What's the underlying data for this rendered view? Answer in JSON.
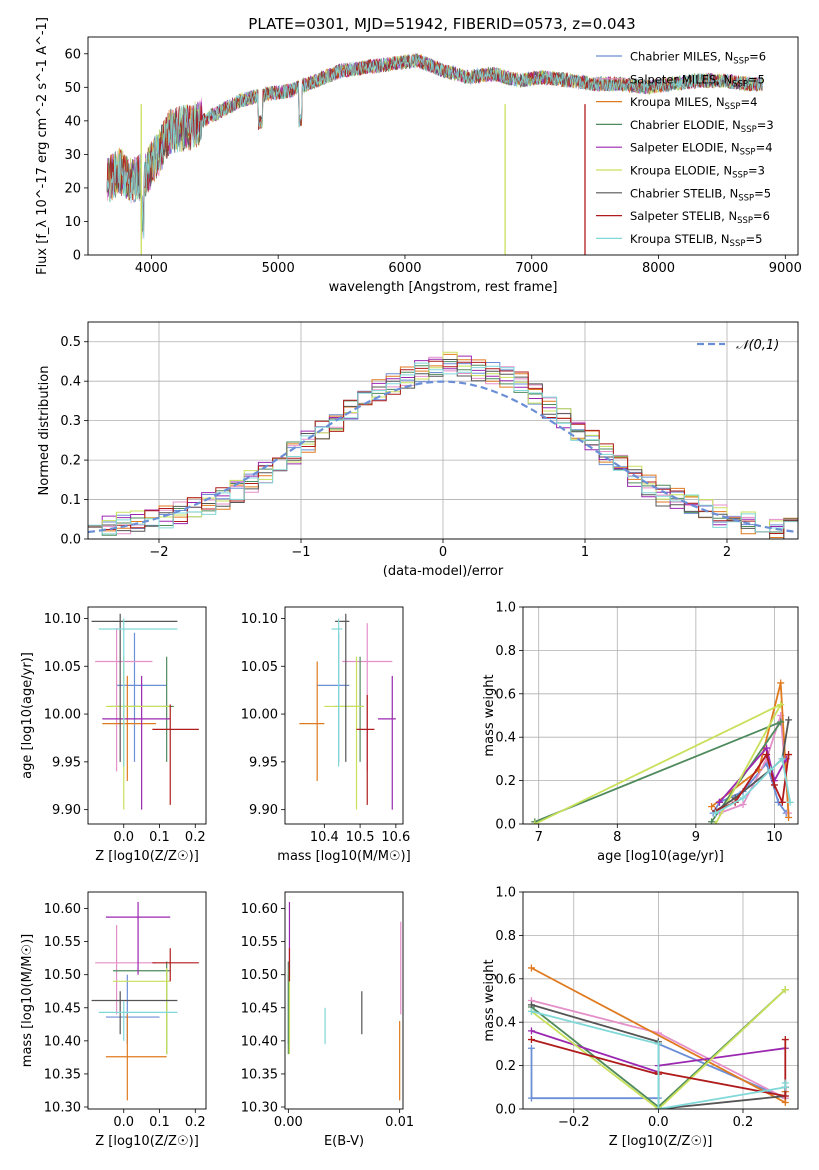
{
  "title": "PLATE=0301, MJD=51942, FIBERID=0573, z=0.043",
  "series_colors": [
    "#6b8fd6",
    "#e58fc9",
    "#e07a1f",
    "#4f8a5c",
    "#9b27b0",
    "#c8e05a",
    "#555555",
    "#b01c1c",
    "#80d8d8"
  ],
  "legend_labels": [
    "Chabrier MILES, N_SSP=6",
    "Salpeter MILES, N_SSP=5",
    "Kroupa MILES, N_SSP=4",
    "Chabrier ELODIE, N_SSP=3",
    "Salpeter ELODIE, N_SSP=4",
    "Kroupa ELODIE, N_SSP=3",
    "Chabrier STELIB, N_SSP=5",
    "Salpeter STELIB, N_SSP=6",
    "Kroupa STELIB, N_SSP=5"
  ],
  "chart_data": [
    {
      "id": "spectrum",
      "type": "line",
      "xlabel": "wavelength [Angstrom, rest frame]",
      "ylabel": "Flux [f_λ 10^-17 erg cm^-2 s^-1 A^-1]",
      "xlim": [
        3500,
        9100
      ],
      "ylim": [
        0,
        65
      ],
      "xticks": [
        4000,
        5000,
        6000,
        7000,
        8000,
        9000
      ],
      "yticks": [
        0,
        10,
        20,
        30,
        40,
        50,
        60
      ],
      "legend_position": "upper right",
      "continuum": {
        "x": [
          3650,
          3750,
          3850,
          3950,
          4050,
          4150,
          4300,
          4500,
          4700,
          4900,
          5100,
          5300,
          5500,
          5700,
          5900,
          6100,
          6300,
          6500,
          6700,
          6900,
          7100,
          7300,
          7500,
          7700,
          7900,
          8100,
          8300,
          8500,
          8700,
          8820
        ],
        "y": [
          22,
          25,
          22,
          24,
          30,
          37,
          38,
          42,
          46,
          48,
          49,
          52,
          55,
          56,
          57,
          58,
          55,
          53,
          54,
          52,
          53,
          52,
          51,
          51,
          50,
          51,
          52,
          52,
          51,
          51
        ]
      },
      "dropouts": [
        {
          "x": 3920,
          "series": "Kroupa ELODIE, N_SSP=3"
        },
        {
          "x": 6790,
          "series": "Kroupa ELODIE, N_SSP=3"
        },
        {
          "x": 7420,
          "series": "Salpeter STELIB, N_SSP=6"
        }
      ]
    },
    {
      "id": "residual_hist",
      "type": "bar",
      "xlabel": "(data-model)/error",
      "ylabel": "Normed distribution",
      "xlim": [
        -2.5,
        2.5
      ],
      "ylim": [
        0,
        0.55
      ],
      "xticks": [
        -2,
        -1,
        0,
        1,
        2
      ],
      "yticks": [
        0.0,
        0.1,
        0.2,
        0.3,
        0.4,
        0.5
      ],
      "bin_width": 0.1,
      "gaussian_label": "𝒩(0,1)",
      "gaussian_color": "#6b8fd6",
      "envelope": {
        "x": [
          -2.5,
          -2.0,
          -1.5,
          -1.0,
          -0.5,
          0.0,
          0.5,
          1.0,
          1.5,
          2.0,
          2.5
        ],
        "y": [
          0.03,
          0.05,
          0.11,
          0.23,
          0.37,
          0.45,
          0.41,
          0.26,
          0.12,
          0.05,
          0.02
        ]
      }
    },
    {
      "id": "age_vs_Z",
      "type": "scatter",
      "xlabel": "Z [log10(Z/Z☉)]",
      "ylabel": "age [log10(age/yr)]",
      "xlim": [
        -0.1,
        0.23
      ],
      "ylim": [
        9.885,
        10.112
      ],
      "xticks": [
        0.0,
        0.1,
        0.2
      ],
      "yticks": [
        9.9,
        9.95,
        10.0,
        10.05,
        10.1
      ],
      "points": [
        {
          "series": "Chabrier MILES, N_SSP=6",
          "x": 0.03,
          "xlo": -0.02,
          "xhi": 0.12,
          "y": 10.03,
          "ylo": 9.95,
          "yhi": 10.085
        },
        {
          "series": "Salpeter MILES, N_SSP=5",
          "x": -0.02,
          "xlo": -0.08,
          "xhi": 0.08,
          "y": 10.055,
          "ylo": 9.94,
          "yhi": 10.09
        },
        {
          "series": "Kroupa MILES, N_SSP=4",
          "x": 0.01,
          "xlo": -0.06,
          "xhi": 0.09,
          "y": 9.99,
          "ylo": 9.93,
          "yhi": 10.04
        },
        {
          "series": "Chabrier ELODIE, N_SSP=3",
          "x": 0.12,
          "xlo": -0.04,
          "xhi": 0.14,
          "y": 10.008,
          "ylo": 9.95,
          "yhi": 10.06
        },
        {
          "series": "Salpeter ELODIE, N_SSP=4",
          "x": 0.05,
          "xlo": -0.06,
          "xhi": 0.13,
          "y": 9.995,
          "ylo": 9.9,
          "yhi": 10.04
        },
        {
          "series": "Kroupa ELODIE, N_SSP=3",
          "x": 0.0,
          "xlo": -0.05,
          "xhi": 0.13,
          "y": 10.008,
          "ylo": 9.9,
          "yhi": 10.06
        },
        {
          "series": "Chabrier STELIB, N_SSP=5",
          "x": -0.01,
          "xlo": -0.09,
          "xhi": 0.15,
          "y": 10.097,
          "ylo": 9.95,
          "yhi": 10.105
        },
        {
          "series": "Salpeter STELIB, N_SSP=6",
          "x": 0.13,
          "xlo": 0.08,
          "xhi": 0.21,
          "y": 9.984,
          "ylo": 9.905,
          "yhi": 10.01
        },
        {
          "series": "Kroupa STELIB, N_SSP=5",
          "x": 0.0,
          "xlo": -0.07,
          "xhi": 0.15,
          "y": 10.089,
          "ylo": 9.945,
          "yhi": 10.1
        }
      ]
    },
    {
      "id": "age_vs_mass",
      "type": "scatter",
      "xlabel": "mass [log10(M/M☉)]",
      "ylabel": "",
      "xlim": [
        10.29,
        10.62
      ],
      "ylim": [
        9.885,
        10.112
      ],
      "xticks": [
        10.4,
        10.5,
        10.6
      ],
      "yticks": [
        9.9,
        9.95,
        10.0,
        10.05,
        10.1
      ],
      "points": [
        {
          "series": "Chabrier MILES, N_SSP=6",
          "x": 10.44,
          "xlo": 10.38,
          "xhi": 10.47,
          "y": 10.03,
          "ylo": 9.95,
          "yhi": 10.085
        },
        {
          "series": "Salpeter MILES, N_SSP=5",
          "x": 10.52,
          "xlo": 10.45,
          "xhi": 10.59,
          "y": 10.055,
          "ylo": 9.94,
          "yhi": 10.095
        },
        {
          "series": "Kroupa MILES, N_SSP=4",
          "x": 10.38,
          "xlo": 10.33,
          "xhi": 10.4,
          "y": 9.99,
          "ylo": 9.93,
          "yhi": 10.055
        },
        {
          "series": "Chabrier ELODIE, N_SSP=3",
          "x": 10.5,
          "xlo": 10.43,
          "xhi": 10.51,
          "y": 10.008,
          "ylo": 9.95,
          "yhi": 10.06
        },
        {
          "series": "Salpeter ELODIE, N_SSP=4",
          "x": 10.59,
          "xlo": 10.55,
          "xhi": 10.6,
          "y": 9.995,
          "ylo": 9.9,
          "yhi": 10.04
        },
        {
          "series": "Kroupa ELODIE, N_SSP=3",
          "x": 10.49,
          "xlo": 10.4,
          "xhi": 10.51,
          "y": 10.008,
          "ylo": 9.9,
          "yhi": 10.06
        },
        {
          "series": "Chabrier STELIB, N_SSP=5",
          "x": 10.46,
          "xlo": 10.43,
          "xhi": 10.47,
          "y": 10.097,
          "ylo": 9.95,
          "yhi": 10.105
        },
        {
          "series": "Salpeter STELIB, N_SSP=6",
          "x": 10.52,
          "xlo": 10.49,
          "xhi": 10.54,
          "y": 9.984,
          "ylo": 9.905,
          "yhi": 10.02
        },
        {
          "series": "Kroupa STELIB, N_SSP=5",
          "x": 10.44,
          "xlo": 10.42,
          "xhi": 10.45,
          "y": 10.089,
          "ylo": 9.945,
          "yhi": 10.1
        }
      ]
    },
    {
      "id": "weight_vs_age",
      "type": "line",
      "xlabel": "age [log10(age/yr)]",
      "ylabel": "mass weight",
      "xlim": [
        6.8,
        10.3
      ],
      "ylim": [
        0.0,
        1.0
      ],
      "xticks": [
        7,
        8,
        9,
        10
      ],
      "yticks": [
        0.0,
        0.2,
        0.4,
        0.6,
        0.8,
        1.0
      ],
      "series": [
        {
          "name": "Chabrier MILES, N_SSP=6",
          "x": [
            9.22,
            9.3,
            9.6,
            9.9,
            10.05,
            10.15
          ],
          "y": [
            0.05,
            0.1,
            0.15,
            0.28,
            0.1,
            0.05
          ]
        },
        {
          "name": "Salpeter MILES, N_SSP=5",
          "x": [
            9.3,
            9.6,
            9.9,
            10.08,
            10.18
          ],
          "y": [
            0.05,
            0.09,
            0.3,
            0.5,
            0.05
          ]
        },
        {
          "name": "Kroupa MILES, N_SSP=4",
          "x": [
            9.2,
            9.8,
            10.08,
            10.18
          ],
          "y": [
            0.08,
            0.25,
            0.65,
            0.03
          ]
        },
        {
          "name": "Chabrier ELODIE, N_SSP=3",
          "x": [
            6.95,
            10.08,
            9.2
          ],
          "y": [
            0.01,
            0.47,
            0.01
          ]
        },
        {
          "name": "Salpeter ELODIE, N_SSP=4",
          "x": [
            9.3,
            9.9,
            10.0,
            10.15
          ],
          "y": [
            0.1,
            0.35,
            0.2,
            0.3
          ]
        },
        {
          "name": "Kroupa ELODIE, N_SSP=3",
          "x": [
            6.95,
            10.08,
            9.25
          ],
          "y": [
            0.0,
            0.55,
            0.0
          ]
        },
        {
          "name": "Chabrier STELIB, N_SSP=5",
          "x": [
            9.25,
            9.5,
            9.95,
            10.1,
            10.18
          ],
          "y": [
            0.06,
            0.12,
            0.25,
            0.3,
            0.48
          ]
        },
        {
          "name": "Salpeter STELIB, N_SSP=6",
          "x": [
            9.25,
            9.5,
            9.9,
            10.0,
            10.1,
            10.18
          ],
          "y": [
            0.06,
            0.1,
            0.32,
            0.18,
            0.1,
            0.32
          ]
        },
        {
          "name": "Kroupa STELIB, N_SSP=5",
          "x": [
            9.25,
            9.6,
            9.95,
            10.1,
            10.2
          ],
          "y": [
            0.05,
            0.12,
            0.25,
            0.3,
            0.1
          ]
        }
      ]
    },
    {
      "id": "mass_vs_Z",
      "type": "scatter",
      "xlabel": "Z [log10(Z/Z☉)]",
      "ylabel": "mass [log10(M/M☉)]",
      "xlim": [
        -0.1,
        0.23
      ],
      "ylim": [
        10.297,
        10.625
      ],
      "xticks": [
        0.0,
        0.1,
        0.2
      ],
      "yticks": [
        10.3,
        10.35,
        10.4,
        10.45,
        10.5,
        10.55,
        10.6
      ],
      "points": [
        {
          "series": "Chabrier MILES, N_SSP=6",
          "x": 0.01,
          "xlo": -0.05,
          "xhi": 0.1,
          "y": 10.436,
          "ylo": 10.395,
          "yhi": 10.5
        },
        {
          "series": "Salpeter MILES, N_SSP=5",
          "x": -0.02,
          "xlo": -0.08,
          "xhi": 0.09,
          "y": 10.518,
          "ylo": 10.44,
          "yhi": 10.575
        },
        {
          "series": "Kroupa MILES, N_SSP=4",
          "x": 0.01,
          "xlo": -0.05,
          "xhi": 0.12,
          "y": 10.376,
          "ylo": 10.31,
          "yhi": 10.44
        },
        {
          "series": "Chabrier ELODIE, N_SSP=3",
          "x": 0.12,
          "xlo": -0.03,
          "xhi": 0.13,
          "y": 10.506,
          "ylo": 10.38,
          "yhi": 10.52
        },
        {
          "series": "Salpeter ELODIE, N_SSP=4",
          "x": 0.04,
          "xlo": -0.05,
          "xhi": 0.13,
          "y": 10.587,
          "ylo": 10.5,
          "yhi": 10.61
        },
        {
          "series": "Kroupa ELODIE, N_SSP=3",
          "x": 0.12,
          "xlo": -0.03,
          "xhi": 0.13,
          "y": 10.49,
          "ylo": 10.38,
          "yhi": 10.51
        },
        {
          "series": "Chabrier STELIB, N_SSP=5",
          "x": -0.01,
          "xlo": -0.09,
          "xhi": 0.15,
          "y": 10.461,
          "ylo": 10.41,
          "yhi": 10.475
        },
        {
          "series": "Salpeter STELIB, N_SSP=6",
          "x": 0.13,
          "xlo": 0.08,
          "xhi": 0.21,
          "y": 10.518,
          "ylo": 10.49,
          "yhi": 10.54
        },
        {
          "series": "Kroupa STELIB, N_SSP=5",
          "x": 0.0,
          "xlo": -0.07,
          "xhi": 0.15,
          "y": 10.443,
          "ylo": 10.4,
          "yhi": 10.46
        }
      ]
    },
    {
      "id": "mass_vs_EBV",
      "type": "scatter",
      "xlabel": "E(B-V)",
      "ylabel": "",
      "xlim": [
        -0.0003,
        0.0103
      ],
      "ylim": [
        10.297,
        10.625
      ],
      "xticks": [
        0.0,
        0.01
      ],
      "yticks": [
        10.3,
        10.35,
        10.4,
        10.45,
        10.5,
        10.55,
        10.6
      ],
      "points": [
        {
          "series": "Chabrier MILES, N_SSP=6",
          "x": 0.0,
          "y": 10.436,
          "ylo": 10.395,
          "yhi": 10.5
        },
        {
          "series": "Salpeter MILES, N_SSP=5",
          "x": 0.0101,
          "y": 10.518,
          "ylo": 10.44,
          "yhi": 10.58
        },
        {
          "series": "Kroupa MILES, N_SSP=4",
          "x": 0.01,
          "y": 10.376,
          "ylo": 10.31,
          "yhi": 10.43
        },
        {
          "series": "Chabrier ELODIE, N_SSP=3",
          "x": 0.0,
          "y": 10.506,
          "ylo": 10.38,
          "yhi": 10.52
        },
        {
          "series": "Salpeter ELODIE, N_SSP=4",
          "x": 0.0001,
          "y": 10.587,
          "ylo": 10.5,
          "yhi": 10.61
        },
        {
          "series": "Kroupa ELODIE, N_SSP=3",
          "x": 0.0001,
          "y": 10.49,
          "ylo": 10.38,
          "yhi": 10.51
        },
        {
          "series": "Chabrier STELIB, N_SSP=5",
          "x": 0.0066,
          "y": 10.461,
          "ylo": 10.41,
          "yhi": 10.475
        },
        {
          "series": "Salpeter STELIB, N_SSP=6",
          "x": 0.0001,
          "y": 10.518,
          "ylo": 10.49,
          "yhi": 10.54
        },
        {
          "series": "Kroupa STELIB, N_SSP=5",
          "x": 0.0033,
          "y": 10.443,
          "ylo": 10.395,
          "yhi": 10.45
        }
      ]
    },
    {
      "id": "weight_vs_Z",
      "type": "line",
      "xlabel": "Z [log10(Z/Z☉)]",
      "ylabel": "mass weight",
      "xlim": [
        -0.32,
        0.33
      ],
      "ylim": [
        0.0,
        1.0
      ],
      "xticks": [
        -0.2,
        0.0,
        0.2
      ],
      "yticks": [
        0.0,
        0.2,
        0.4,
        0.6,
        0.8,
        1.0
      ],
      "series": [
        {
          "name": "Chabrier MILES, N_SSP=6",
          "x": [
            -0.3,
            -0.3,
            0.0,
            0.0,
            0.3,
            0.3
          ],
          "y": [
            0.28,
            0.05,
            0.05,
            0.3,
            0.05,
            0.1
          ]
        },
        {
          "name": "Salpeter MILES, N_SSP=5",
          "x": [
            -0.3,
            0.0,
            0.3,
            0.3
          ],
          "y": [
            0.5,
            0.35,
            0.05,
            0.08
          ]
        },
        {
          "name": "Kroupa MILES, N_SSP=4",
          "x": [
            -0.3,
            0.3,
            0.3
          ],
          "y": [
            0.65,
            0.03,
            0.08
          ]
        },
        {
          "name": "Chabrier ELODIE, N_SSP=3",
          "x": [
            -0.3,
            0.0,
            0.3
          ],
          "y": [
            0.47,
            0.01,
            0.55
          ]
        },
        {
          "name": "Salpeter ELODIE, N_SSP=4",
          "x": [
            -0.3,
            0.0,
            0.0,
            0.3
          ],
          "y": [
            0.36,
            0.17,
            0.2,
            0.28
          ]
        },
        {
          "name": "Kroupa ELODIE, N_SSP=3",
          "x": [
            -0.3,
            0.0,
            0.3
          ],
          "y": [
            0.45,
            0.0,
            0.55
          ]
        },
        {
          "name": "Chabrier STELIB, N_SSP=5",
          "x": [
            -0.3,
            0.0,
            0.0,
            0.3,
            0.3
          ],
          "y": [
            0.48,
            0.31,
            0.0,
            0.06,
            0.1
          ]
        },
        {
          "name": "Salpeter STELIB, N_SSP=6",
          "x": [
            -0.3,
            0.0,
            0.0,
            0.3,
            0.3,
            0.3
          ],
          "y": [
            0.32,
            0.16,
            0.17,
            0.06,
            0.1,
            0.32
          ]
        },
        {
          "name": "Kroupa STELIB, N_SSP=5",
          "x": [
            -0.3,
            0.0,
            0.0,
            0.3,
            0.3
          ],
          "y": [
            0.45,
            0.3,
            0.0,
            0.1,
            0.12
          ]
        }
      ]
    }
  ]
}
